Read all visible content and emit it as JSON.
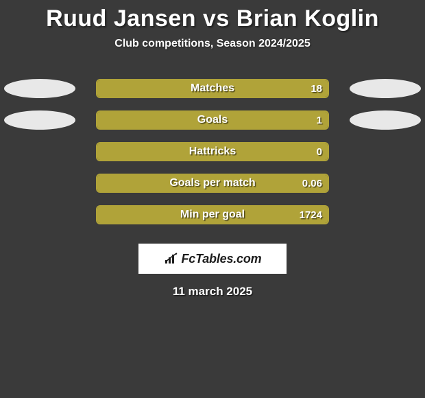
{
  "title": "Ruud Jansen vs Brian Koglin",
  "subtitle": "Club competitions, Season 2024/2025",
  "date": "11 march 2025",
  "logo_text": "FcTables.com",
  "colors": {
    "left_player": "#e8e8e8",
    "right_player": "#b0a339",
    "bg": "#3a3a3a"
  },
  "stats": [
    {
      "label": "Matches",
      "left_value": "",
      "right_value": "18",
      "left_pct": 0,
      "right_pct": 100,
      "show_left_ellipse": true,
      "show_right_ellipse": true,
      "left_ellipse_color": "#e8e8e8",
      "right_ellipse_color": "#e8e8e8"
    },
    {
      "label": "Goals",
      "left_value": "",
      "right_value": "1",
      "left_pct": 0,
      "right_pct": 100,
      "show_left_ellipse": true,
      "show_right_ellipse": true,
      "left_ellipse_color": "#e8e8e8",
      "right_ellipse_color": "#e8e8e8"
    },
    {
      "label": "Hattricks",
      "left_value": "",
      "right_value": "0",
      "left_pct": 0,
      "right_pct": 100,
      "show_left_ellipse": false,
      "show_right_ellipse": false
    },
    {
      "label": "Goals per match",
      "left_value": "",
      "right_value": "0.06",
      "left_pct": 0,
      "right_pct": 100,
      "show_left_ellipse": false,
      "show_right_ellipse": false
    },
    {
      "label": "Min per goal",
      "left_value": "",
      "right_value": "1724",
      "left_pct": 0,
      "right_pct": 100,
      "show_left_ellipse": false,
      "show_right_ellipse": false
    }
  ],
  "bar_style": {
    "border_color": "#b0a339",
    "right_fill": "#b0a339",
    "left_fill": "#e8e8e8",
    "border_radius": 6
  }
}
